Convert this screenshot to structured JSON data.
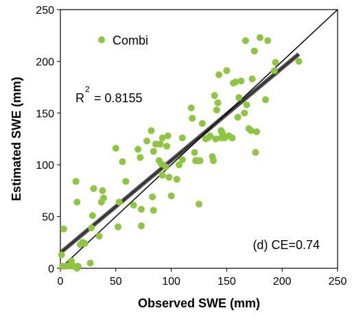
{
  "chart_data": {
    "type": "scatter",
    "xlabel": "Observed SWE (mm)",
    "ylabel": "Estimated SWE (mm)",
    "xlim": [
      0,
      250
    ],
    "ylim": [
      0,
      250
    ],
    "xticks": [
      "0",
      "50",
      "100",
      "150",
      "200",
      "250"
    ],
    "yticks": [
      "0",
      "50",
      "100",
      "150",
      "200",
      "250"
    ],
    "grid": false,
    "legend": {
      "position": "top-left",
      "label": "Combi",
      "color": "#8dc63f"
    },
    "r2_label": "R",
    "r2_sup": "2",
    "r2_value": "= 0.8155",
    "panel_label": "(d)  CE=0.74",
    "one_to_one_line": {
      "from": [
        0,
        0
      ],
      "to": [
        250,
        250
      ],
      "color": "#000000"
    },
    "regression_line": {
      "from": [
        0,
        15
      ],
      "to": [
        215,
        207
      ],
      "color": "#555555"
    },
    "series": [
      {
        "name": "Combi",
        "color": "#8dc63f",
        "points": [
          [
            1,
            13
          ],
          [
            2,
            2
          ],
          [
            3,
            38
          ],
          [
            5,
            2
          ],
          [
            8,
            3
          ],
          [
            10,
            7
          ],
          [
            12,
            2
          ],
          [
            15,
            0
          ],
          [
            16,
            2
          ],
          [
            14,
            84
          ],
          [
            15,
            64
          ],
          [
            18,
            23
          ],
          [
            20,
            25
          ],
          [
            22,
            24
          ],
          [
            27,
            5
          ],
          [
            28,
            39
          ],
          [
            29,
            51
          ],
          [
            30,
            77
          ],
          [
            35,
            31
          ],
          [
            37,
            64
          ],
          [
            38,
            75
          ],
          [
            39,
            68
          ],
          [
            50,
            116
          ],
          [
            52,
            40
          ],
          [
            53,
            64
          ],
          [
            56,
            103
          ],
          [
            59,
            84
          ],
          [
            66,
            61
          ],
          [
            70,
            115
          ],
          [
            72,
            107
          ],
          [
            73,
            41
          ],
          [
            73,
            57
          ],
          [
            78,
            123
          ],
          [
            82,
            133
          ],
          [
            83,
            69
          ],
          [
            84,
            56
          ],
          [
            84,
            113
          ],
          [
            86,
            120
          ],
          [
            89,
            104
          ],
          [
            90,
            120
          ],
          [
            91,
            101
          ],
          [
            92,
            126
          ],
          [
            92,
            90
          ],
          [
            95,
            98
          ],
          [
            96,
            118
          ],
          [
            97,
            128
          ],
          [
            98,
            88
          ],
          [
            100,
            70
          ],
          [
            105,
            86
          ],
          [
            107,
            100
          ],
          [
            110,
            105
          ],
          [
            110,
            126
          ],
          [
            118,
            155
          ],
          [
            119,
            145
          ],
          [
            121,
            112
          ],
          [
            122,
            104
          ],
          [
            124,
            104
          ],
          [
            125,
            62
          ],
          [
            126,
            104
          ],
          [
            128,
            140
          ],
          [
            131,
            125
          ],
          [
            133,
            126
          ],
          [
            135,
            128
          ],
          [
            137,
            108
          ],
          [
            138,
            104
          ],
          [
            139,
            167
          ],
          [
            140,
            125
          ],
          [
            141,
            153
          ],
          [
            142,
            160
          ],
          [
            143,
            187
          ],
          [
            145,
            126
          ],
          [
            145,
            133
          ],
          [
            146,
            131
          ],
          [
            147,
            128
          ],
          [
            148,
            126
          ],
          [
            150,
            191
          ],
          [
            152,
            128
          ],
          [
            155,
            126
          ],
          [
            156,
            179
          ],
          [
            158,
            180
          ],
          [
            160,
            146
          ],
          [
            161,
            165
          ],
          [
            163,
            181
          ],
          [
            166,
            150
          ],
          [
            167,
            220
          ],
          [
            168,
            158
          ],
          [
            170,
            135
          ],
          [
            172,
            133
          ],
          [
            173,
            183
          ],
          [
            175,
            210
          ],
          [
            176,
            112
          ],
          [
            177,
            132
          ],
          [
            180,
            223
          ],
          [
            185,
            163
          ],
          [
            187,
            220
          ],
          [
            193,
            191
          ],
          [
            194,
            199
          ],
          [
            215,
            200
          ]
        ]
      }
    ]
  }
}
